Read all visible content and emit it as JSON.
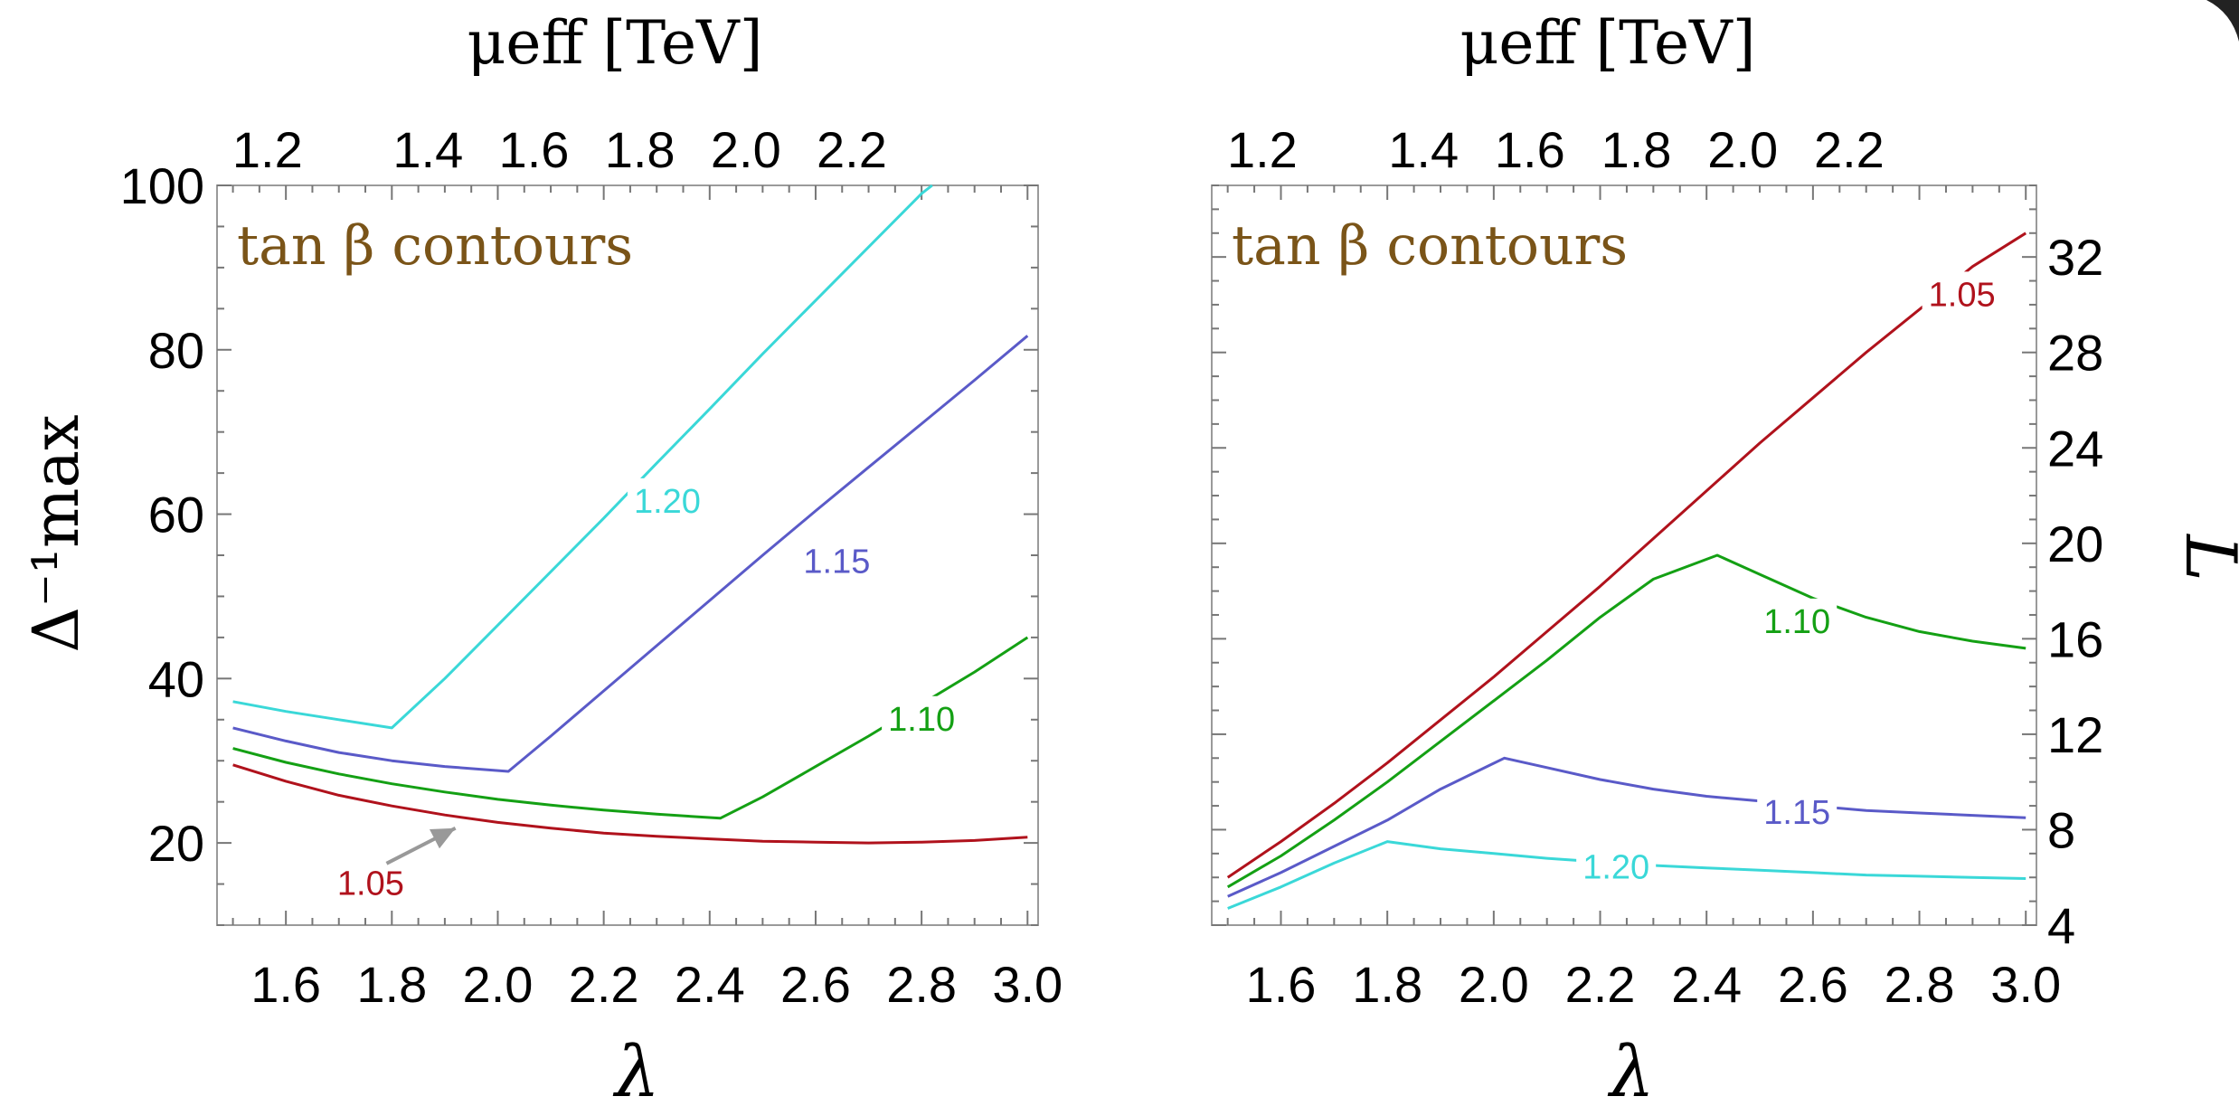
{
  "chart_data": [
    {
      "type": "line",
      "panel": "left",
      "inset_title": "tan β contours",
      "inset_title_color": "#7a5418",
      "xlabel": "λ",
      "ylabel": "Δ⁻¹max",
      "top_axis_label": "μeff [TeV]",
      "xlim": [
        1.47,
        3.02
      ],
      "ylim": [
        10,
        100
      ],
      "x_ticks": [
        "1.6",
        "1.8",
        "2.0",
        "2.2",
        "2.4",
        "2.6",
        "2.8",
        "3.0"
      ],
      "y_ticks": [
        "20",
        "40",
        "60",
        "80",
        "100"
      ],
      "top_ticks": [
        "1.2",
        "1.4",
        "1.6",
        "1.8",
        "2.0",
        "2.2"
      ],
      "series": [
        {
          "name": "1.05",
          "color": "#b0121c",
          "x": [
            1.5,
            1.6,
            1.7,
            1.8,
            1.9,
            2.0,
            2.1,
            2.2,
            2.3,
            2.4,
            2.5,
            2.6,
            2.7,
            2.8,
            2.9,
            3.0
          ],
          "y": [
            29.5,
            27.5,
            25.8,
            24.5,
            23.4,
            22.5,
            21.8,
            21.2,
            20.8,
            20.5,
            20.2,
            20.1,
            20.0,
            20.1,
            20.3,
            20.7
          ]
        },
        {
          "name": "1.10",
          "color": "#14a014",
          "x": [
            1.5,
            1.6,
            1.7,
            1.8,
            1.9,
            2.0,
            2.1,
            2.2,
            2.3,
            2.42,
            2.5,
            2.6,
            2.7,
            2.8,
            2.9,
            3.0
          ],
          "y": [
            31.5,
            29.8,
            28.4,
            27.2,
            26.2,
            25.3,
            24.6,
            24.0,
            23.5,
            23.0,
            25.6,
            29.3,
            33.0,
            36.9,
            40.8,
            45.0
          ]
        },
        {
          "name": "1.15",
          "color": "#5a5ac8",
          "x": [
            1.5,
            1.6,
            1.7,
            1.8,
            1.9,
            2.02,
            2.1,
            2.2,
            2.3,
            2.4,
            2.5,
            2.6,
            2.7,
            2.8,
            2.9,
            3.0
          ],
          "y": [
            34.0,
            32.4,
            31.0,
            30.0,
            29.3,
            28.7,
            33.0,
            38.5,
            44.0,
            49.5,
            55.0,
            60.4,
            65.7,
            71.0,
            76.3,
            81.7
          ]
        },
        {
          "name": "1.20",
          "color": "#3ad8d8",
          "x": [
            1.5,
            1.6,
            1.7,
            1.8,
            1.9,
            2.0,
            2.1,
            2.2,
            2.3,
            2.4,
            2.5,
            2.6,
            2.7,
            2.8,
            2.82
          ],
          "y": [
            37.2,
            36.0,
            35.0,
            34.0,
            40.0,
            46.5,
            53.0,
            59.5,
            66.2,
            72.8,
            79.5,
            86.0,
            92.5,
            99.0,
            100.0
          ]
        }
      ],
      "labels": [
        {
          "text": "1.20",
          "series": "1.20",
          "x": 2.32,
          "y": 61.5
        },
        {
          "text": "1.15",
          "series": "1.15",
          "x": 2.64,
          "y": 54.2
        },
        {
          "text": "1.10",
          "series": "1.10",
          "x": 2.8,
          "y": 35.0
        },
        {
          "text": "1.05",
          "series": "1.05",
          "x": 1.76,
          "y": 15.0
        }
      ],
      "arrow": {
        "from": [
          1.79,
          17.5
        ],
        "to": [
          1.92,
          21.8
        ],
        "color": "#999999"
      }
    },
    {
      "type": "line",
      "panel": "right",
      "inset_title": "tan β contours",
      "inset_title_color": "#7a5418",
      "xlabel": "λ",
      "ylabel": "L",
      "top_axis_label": "μeff [TeV]",
      "xlim": [
        1.47,
        3.02
      ],
      "ylim": [
        4,
        35
      ],
      "x_ticks": [
        "1.6",
        "1.8",
        "2.0",
        "2.2",
        "2.4",
        "2.6",
        "2.8",
        "3.0"
      ],
      "y_ticks": [
        "4",
        "8",
        "12",
        "16",
        "20",
        "24",
        "28",
        "32"
      ],
      "top_ticks": [
        "1.2",
        "1.4",
        "1.6",
        "1.8",
        "2.0",
        "2.2"
      ],
      "series": [
        {
          "name": "1.05",
          "color": "#b0121c",
          "x": [
            1.5,
            1.6,
            1.7,
            1.8,
            1.9,
            2.0,
            2.1,
            2.2,
            2.3,
            2.4,
            2.5,
            2.6,
            2.7,
            2.8,
            2.9,
            3.0
          ],
          "y": [
            6.0,
            7.5,
            9.1,
            10.8,
            12.6,
            14.4,
            16.3,
            18.2,
            20.2,
            22.2,
            24.2,
            26.1,
            28.0,
            29.8,
            31.6,
            33.0
          ]
        },
        {
          "name": "1.10",
          "color": "#14a014",
          "x": [
            1.5,
            1.6,
            1.7,
            1.8,
            1.9,
            2.0,
            2.1,
            2.2,
            2.3,
            2.42,
            2.5,
            2.6,
            2.7,
            2.8,
            2.9,
            3.0
          ],
          "y": [
            5.6,
            6.9,
            8.4,
            10.0,
            11.7,
            13.4,
            15.1,
            16.9,
            18.5,
            19.5,
            18.7,
            17.7,
            16.9,
            16.3,
            15.9,
            15.6
          ]
        },
        {
          "name": "1.15",
          "color": "#5a5ac8",
          "x": [
            1.5,
            1.6,
            1.7,
            1.8,
            1.9,
            2.02,
            2.1,
            2.2,
            2.3,
            2.4,
            2.5,
            2.6,
            2.7,
            2.8,
            2.9,
            3.0
          ],
          "y": [
            5.2,
            6.2,
            7.3,
            8.4,
            9.7,
            11.0,
            10.6,
            10.1,
            9.7,
            9.4,
            9.2,
            9.0,
            8.8,
            8.7,
            8.6,
            8.5
          ]
        },
        {
          "name": "1.20",
          "color": "#3ad8d8",
          "x": [
            1.5,
            1.6,
            1.7,
            1.8,
            1.9,
            2.0,
            2.1,
            2.2,
            2.3,
            2.4,
            2.5,
            2.6,
            2.7,
            2.8,
            2.9,
            3.0
          ],
          "y": [
            4.7,
            5.6,
            6.6,
            7.5,
            7.2,
            7.0,
            6.8,
            6.65,
            6.5,
            6.4,
            6.3,
            6.2,
            6.1,
            6.05,
            6.0,
            5.95
          ]
        }
      ],
      "labels": [
        {
          "text": "1.05",
          "series": "1.05",
          "x": 2.88,
          "y": 30.4
        },
        {
          "text": "1.10",
          "series": "1.10",
          "x": 2.57,
          "y": 16.7
        },
        {
          "text": "1.15",
          "series": "1.15",
          "x": 2.57,
          "y": 8.7
        },
        {
          "text": "1.20",
          "series": "1.20",
          "x": 2.23,
          "y": 6.4
        }
      ]
    }
  ]
}
